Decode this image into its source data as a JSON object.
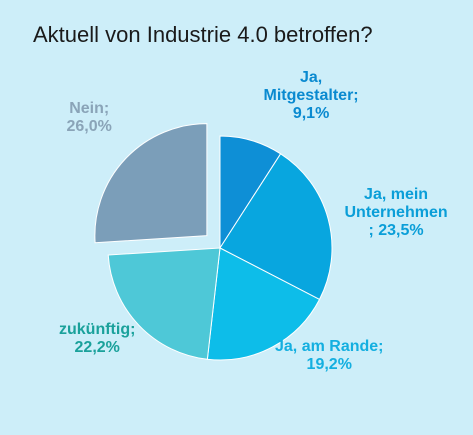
{
  "chart_data": {
    "type": "pie",
    "title": "Aktuell von Industrie 4.0 betroffen?",
    "start_angle_deg": 0,
    "direction": "clockwise",
    "exploded": [
      "Nein"
    ],
    "slices": [
      {
        "name": "Ja, Mitgestalter",
        "value": 9.1,
        "label_lines": [
          "Ja,",
          "Mitgestalter;",
          "9,1%"
        ],
        "color": "#0e8fd6",
        "label_color": "#0a8ad0"
      },
      {
        "name": "Ja, mein Unternehmen",
        "value": 23.5,
        "label_lines": [
          "Ja, mein",
          "Unternehmen",
          "; 23,5%"
        ],
        "color": "#08a6df",
        "label_color": "#0a9ed8"
      },
      {
        "name": "Ja, am Rande",
        "value": 19.2,
        "label_lines": [
          "Ja, am Rande;",
          "19,2%"
        ],
        "color": "#0dbde9",
        "label_color": "#14afe0"
      },
      {
        "name": "zukünftig",
        "value": 22.2,
        "label_lines": [
          "zukünftig;",
          "22,2%"
        ],
        "color": "#4ec8d7",
        "label_color": "#1aa19b"
      },
      {
        "name": "Nein",
        "value": 26.0,
        "label_lines": [
          "Nein;",
          "26,0%"
        ],
        "color": "#7b9eb9",
        "label_color": "#8aa4b8"
      }
    ]
  }
}
